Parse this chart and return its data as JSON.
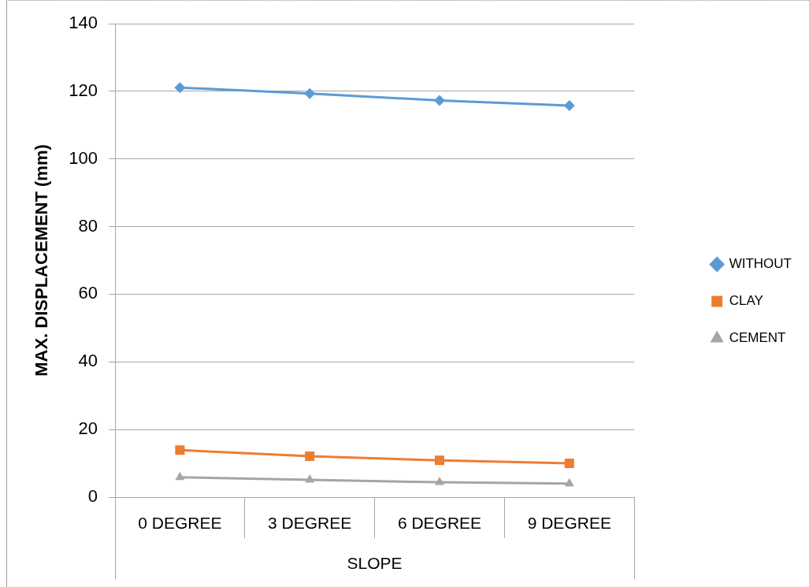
{
  "chart_data": {
    "type": "line",
    "xlabel": "SLOPE",
    "ylabel": "MAX. DISPLACEMENT (mm)",
    "categories": [
      "0 DEGREE",
      "3 DEGREE",
      "6 DEGREE",
      "9 DEGREE"
    ],
    "series": [
      {
        "name": "WITHOUT",
        "color": "#5b9bd5",
        "marker": "diamond",
        "values": [
          121.1,
          119.3,
          117.3,
          115.8
        ]
      },
      {
        "name": "CLAY",
        "color": "#ed7d31",
        "marker": "square",
        "values": [
          13.9,
          12.1,
          10.9,
          10.0
        ]
      },
      {
        "name": "CEMENT",
        "color": "#a5a5a5",
        "marker": "triangle",
        "values": [
          5.9,
          5.1,
          4.4,
          4.0
        ]
      }
    ],
    "ylim": [
      0,
      140
    ],
    "yticks": [
      0,
      20,
      40,
      60,
      80,
      100,
      120,
      140
    ],
    "grid": "y",
    "legend": "right",
    "line_style": "solid"
  }
}
